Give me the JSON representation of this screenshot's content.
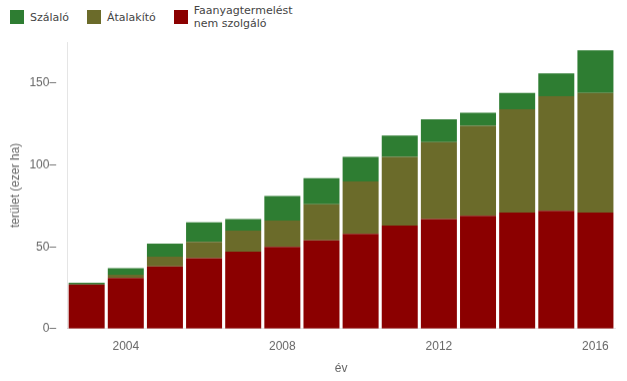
{
  "chart_data": {
    "type": "bar",
    "stacked": true,
    "categories": [
      null,
      "2004",
      null,
      null,
      null,
      "2008",
      null,
      null,
      null,
      "2012",
      null,
      null,
      null,
      "2016"
    ],
    "series": [
      {
        "name": "Faanyagtermelést\nnem szolgáló",
        "color": "#8B0000",
        "values": [
          27,
          31,
          38,
          43,
          47,
          50,
          54,
          58,
          63,
          67,
          69,
          71,
          72,
          71
        ]
      },
      {
        "name": "Átalakító",
        "color": "#6B6B2A",
        "values": [
          0,
          2,
          6,
          10,
          13,
          16,
          22,
          32,
          42,
          47,
          55,
          63,
          70,
          73
        ]
      },
      {
        "name": "Szálaló",
        "color": "#2E7D32",
        "values": [
          1,
          4,
          8,
          12,
          7,
          15,
          16,
          15,
          13,
          14,
          8,
          10,
          14,
          26
        ]
      }
    ],
    "xlabel": "év",
    "ylabel": "terület (ezer ha)",
    "ylim": [
      0,
      175
    ],
    "yticks": [
      {
        "value": 0,
        "label": "0–"
      },
      {
        "value": 50,
        "label": "50–"
      },
      {
        "value": 100,
        "label": "100–"
      },
      {
        "value": 150,
        "label": "150–"
      }
    ],
    "grid": false,
    "legend": "upper left"
  }
}
